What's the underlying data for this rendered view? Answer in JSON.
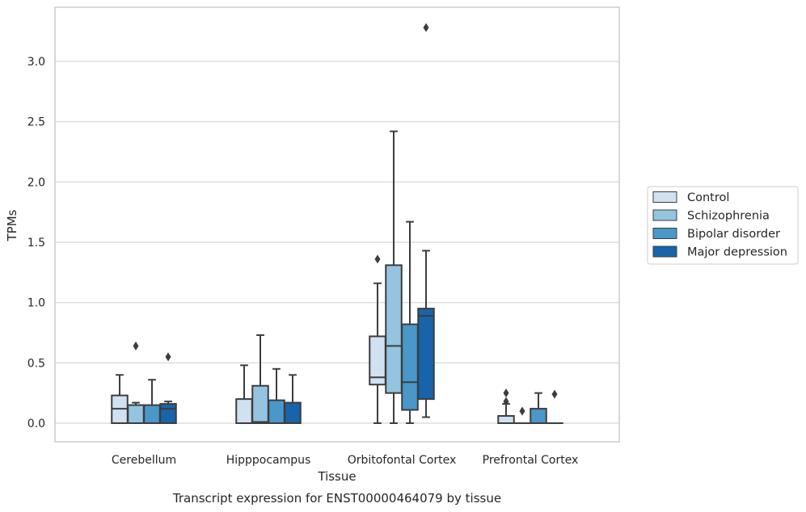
{
  "chart_data": {
    "type": "box",
    "xlabel": "Tissue",
    "ylabel": "TPMs",
    "caption": "Transcript expression for ENST00000464079 by tissue",
    "ylim": [
      -0.16,
      3.45
    ],
    "yticks": [
      "0.0",
      "0.5",
      "1.0",
      "1.5",
      "2.0",
      "2.5",
      "3.0"
    ],
    "ytick_values": [
      0.0,
      0.5,
      1.0,
      1.5,
      2.0,
      2.5,
      3.0
    ],
    "grid": "horizontal",
    "legend_placement": "right",
    "categories": [
      "Cerebellum",
      "Hipppocampus",
      "Orbitofontal Cortex",
      "Prefrontal Cortex"
    ],
    "series": [
      {
        "name": "Control",
        "color": "#d0e1f2",
        "boxes": [
          {
            "whislo": 0.0,
            "q1": 0.0,
            "med": 0.12,
            "q3": 0.23,
            "whishi": 0.4,
            "fliers": []
          },
          {
            "whislo": 0.0,
            "q1": 0.0,
            "med": 0.0,
            "q3": 0.2,
            "whishi": 0.48,
            "fliers": []
          },
          {
            "whislo": 0.0,
            "q1": 0.32,
            "med": 0.38,
            "q3": 0.72,
            "whishi": 1.16,
            "fliers": [
              1.36
            ]
          },
          {
            "whislo": 0.0,
            "q1": 0.0,
            "med": 0.0,
            "q3": 0.06,
            "whishi": 0.16,
            "fliers": [
              0.18,
              0.25
            ]
          }
        ]
      },
      {
        "name": "Schizophrenia",
        "color": "#94c4df",
        "boxes": [
          {
            "whislo": 0.0,
            "q1": 0.0,
            "med": 0.0,
            "q3": 0.15,
            "whishi": 0.17,
            "fliers": [
              0.64
            ]
          },
          {
            "whislo": 0.0,
            "q1": 0.0,
            "med": 0.01,
            "q3": 0.31,
            "whishi": 0.73,
            "fliers": []
          },
          {
            "whislo": 0.0,
            "q1": 0.25,
            "med": 0.64,
            "q3": 1.31,
            "whishi": 2.42,
            "fliers": []
          },
          {
            "whislo": 0.0,
            "q1": 0.0,
            "med": 0.0,
            "q3": 0.0,
            "whishi": 0.0,
            "fliers": [
              0.1
            ]
          }
        ]
      },
      {
        "name": "Bipolar disorder",
        "color": "#4a98c9",
        "boxes": [
          {
            "whislo": 0.0,
            "q1": 0.0,
            "med": 0.0,
            "q3": 0.15,
            "whishi": 0.36,
            "fliers": []
          },
          {
            "whislo": 0.0,
            "q1": 0.0,
            "med": 0.0,
            "q3": 0.19,
            "whishi": 0.45,
            "fliers": []
          },
          {
            "whislo": 0.0,
            "q1": 0.11,
            "med": 0.34,
            "q3": 0.82,
            "whishi": 1.67,
            "fliers": []
          },
          {
            "whislo": 0.0,
            "q1": 0.0,
            "med": 0.0,
            "q3": 0.12,
            "whishi": 0.25,
            "fliers": []
          }
        ]
      },
      {
        "name": "Major depression",
        "color": "#1764ab",
        "boxes": [
          {
            "whislo": 0.0,
            "q1": 0.0,
            "med": 0.12,
            "q3": 0.16,
            "whishi": 0.18,
            "fliers": [
              0.55
            ]
          },
          {
            "whislo": 0.0,
            "q1": 0.0,
            "med": 0.0,
            "q3": 0.17,
            "whishi": 0.4,
            "fliers": []
          },
          {
            "whislo": 0.05,
            "q1": 0.2,
            "med": 0.89,
            "q3": 0.95,
            "whishi": 1.43,
            "fliers": [
              3.28
            ]
          },
          {
            "whislo": 0.0,
            "q1": 0.0,
            "med": 0.0,
            "q3": 0.0,
            "whishi": 0.0,
            "fliers": [
              0.24
            ]
          }
        ]
      }
    ]
  }
}
